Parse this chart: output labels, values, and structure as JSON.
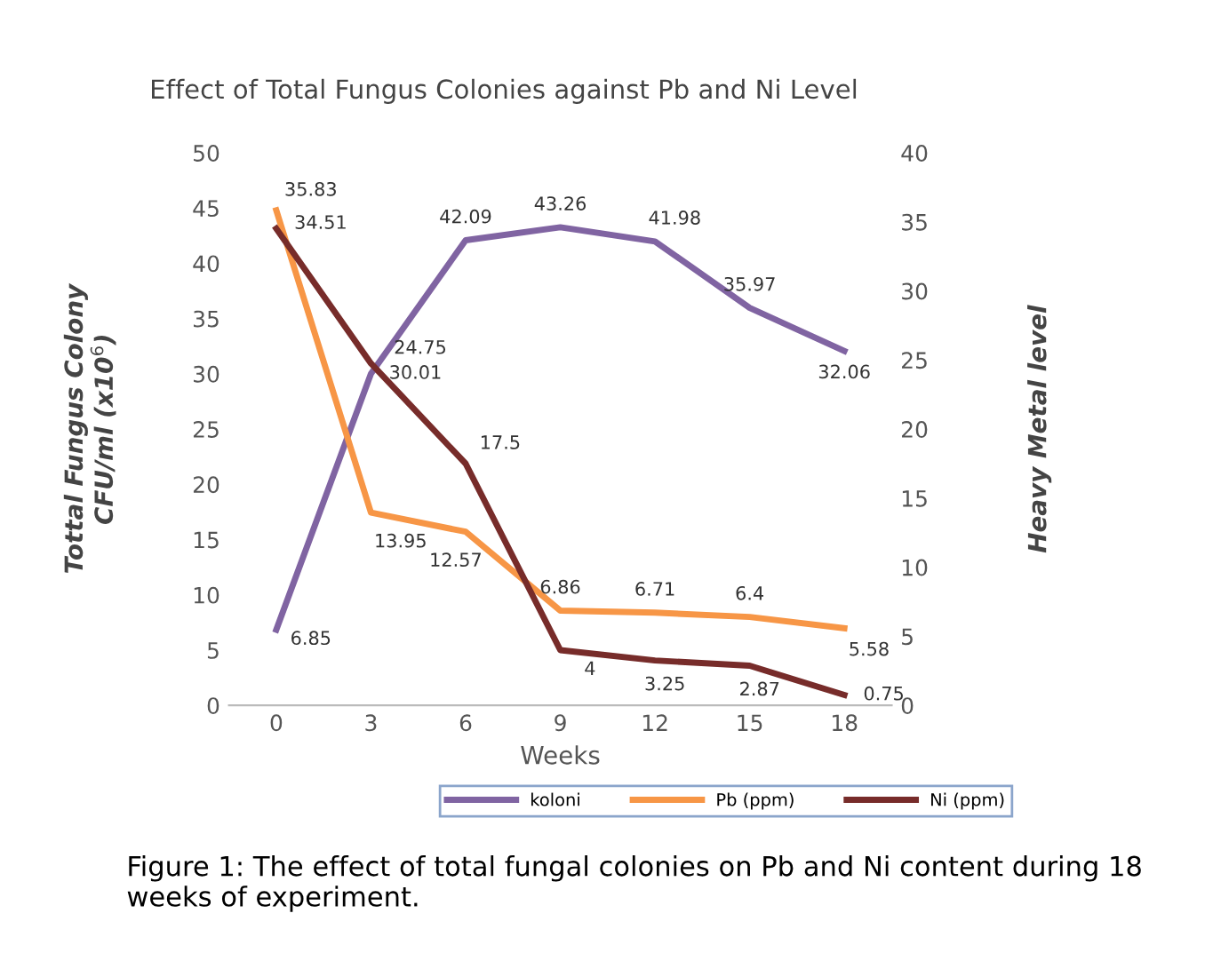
{
  "chart_data": {
    "type": "line",
    "title": "Effect of Total Fungus Colonies against Pb and Ni Level",
    "xlabel": "Weeks",
    "ylabel": "Tottal Fungus Colony\nCFU/ml (x10$^{6}$)",
    "y2label": "Heavy Metal level",
    "categories": [
      "0",
      "3",
      "6",
      "9",
      "12",
      "15",
      "18"
    ],
    "series": [
      {
        "name": "koloni",
        "color": "#8064a2",
        "values": [
          6.85,
          30.01,
          42.09,
          43.26,
          41.98,
          35.97,
          32.06
        ]
      },
      {
        "name": "Pb (ppm)",
        "color": "#f79646",
        "axis": "y2",
        "values": [
          35.83,
          13.95,
          12.57,
          6.86,
          6.71,
          6.4,
          5.58
        ]
      },
      {
        "name": "Ni (ppm)",
        "color": "#772c2a",
        "axis": "y2",
        "values": [
          34.51,
          24.75,
          17.5,
          4,
          3.25,
          2.87,
          0.75
        ]
      }
    ],
    "ylim": [
      0,
      50
    ],
    "yticks": [
      0,
      5,
      10,
      15,
      20,
      25,
      30,
      35,
      40,
      45,
      50
    ],
    "y2lim": [
      0,
      40
    ],
    "y2ticks": [
      0,
      5,
      10,
      15,
      20,
      25,
      30,
      35,
      40
    ],
    "data_labels": true,
    "grid": false,
    "legend": "bottom",
    "marker": "none",
    "line_style": "solid",
    "annotations": [
      "Figure 1: The effect of total fungal colonies on Pb and Ni content during 18 weeks of experiment."
    ]
  }
}
